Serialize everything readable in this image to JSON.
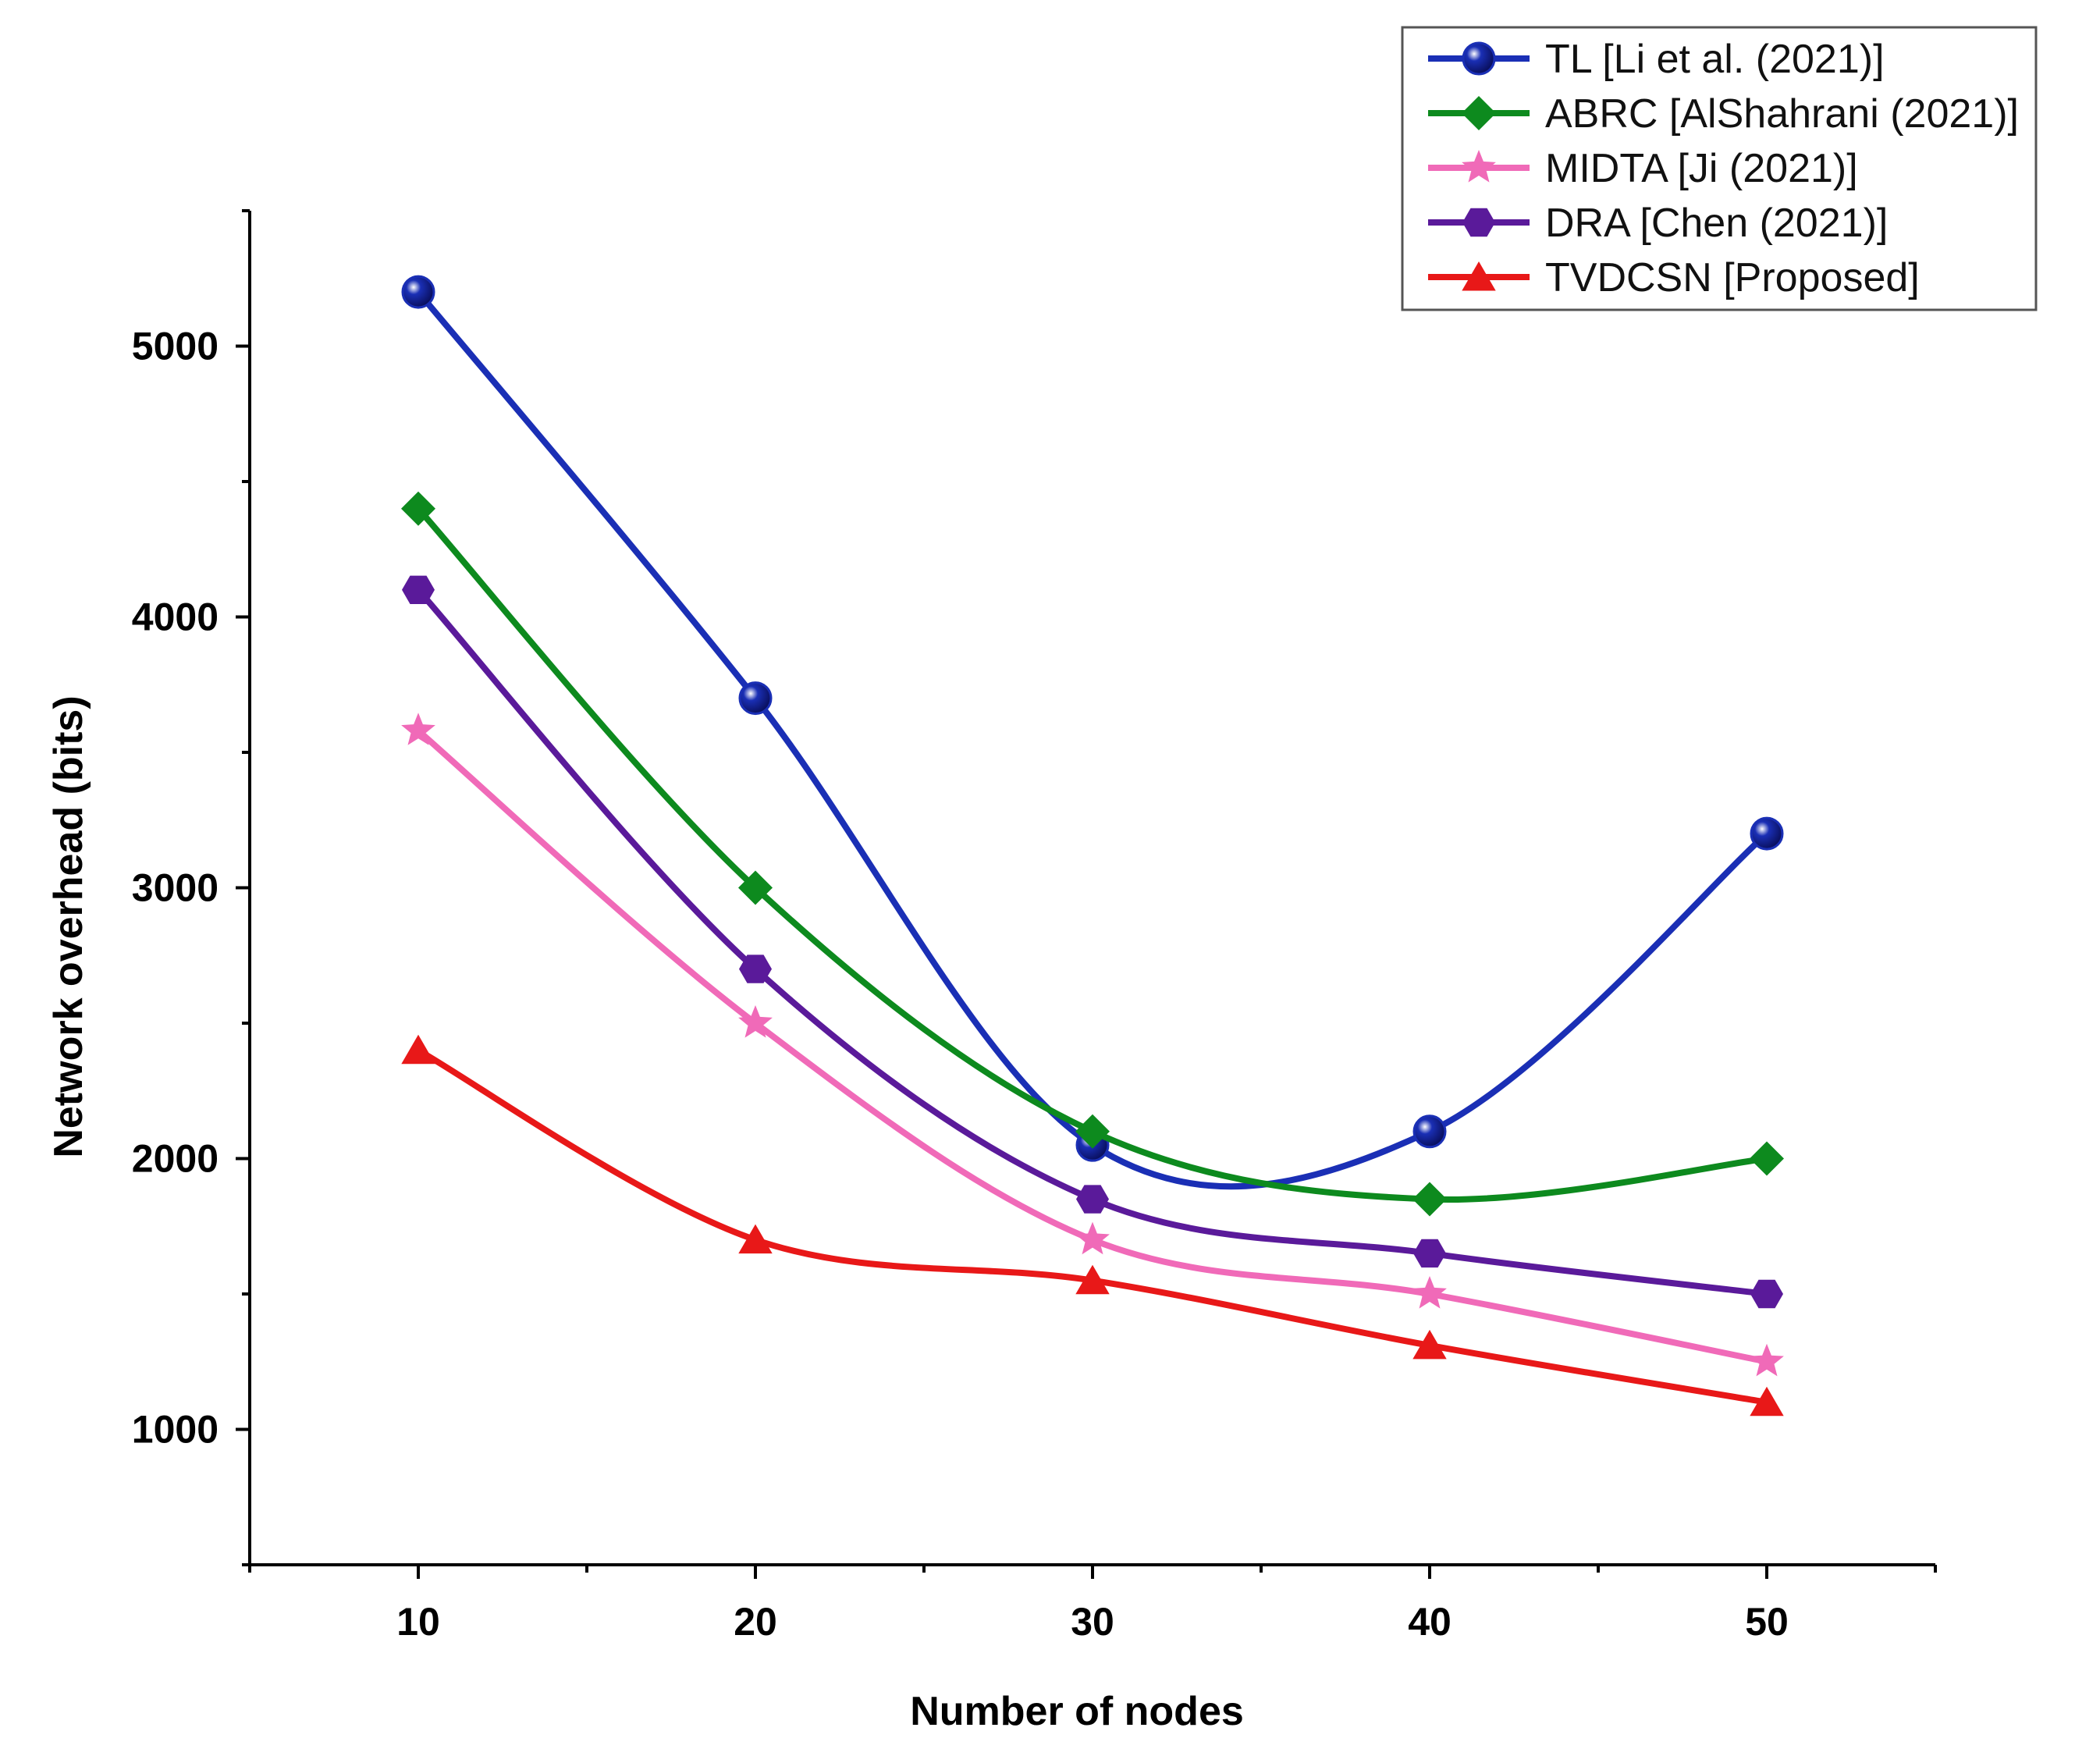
{
  "chart_data": {
    "type": "line",
    "xlabel": "Number of nodes",
    "ylabel": "Network overhead (bits)",
    "x": [
      10,
      20,
      30,
      40,
      50
    ],
    "xlim": [
      5,
      55
    ],
    "ylim": [
      500,
      5500
    ],
    "x_ticks": [
      10,
      20,
      30,
      40,
      50
    ],
    "y_ticks": [
      1000,
      2000,
      3000,
      4000,
      5000
    ],
    "x_tick_labels": [
      "10",
      "20",
      "30",
      "40",
      "50"
    ],
    "y_tick_labels": [
      "1000",
      "2000",
      "3000",
      "4000",
      "5000"
    ],
    "grid": false,
    "legend_position": "top-right",
    "series": [
      {
        "name": "TL [Li et al. (2021)]",
        "values": [
          5200,
          3700,
          2050,
          2100,
          3200
        ],
        "color": "#1a2fb5",
        "marker": "circle"
      },
      {
        "name": "ABRC [AlShahrani (2021)]",
        "values": [
          4400,
          3000,
          2100,
          1850,
          2000
        ],
        "color": "#0d8a1e",
        "marker": "diamond"
      },
      {
        "name": "MIDTA [Ji (2021)]",
        "values": [
          3580,
          2500,
          1700,
          1500,
          1250
        ],
        "color": "#f06ab8",
        "marker": "star"
      },
      {
        "name": "DRA [Chen (2021)]",
        "values": [
          4100,
          2700,
          1850,
          1650,
          1500
        ],
        "color": "#5a1a9a",
        "marker": "hexagon"
      },
      {
        "name": "TVDCSN [Proposed]",
        "values": [
          2400,
          1700,
          1550,
          1310,
          1100
        ],
        "color": "#e81818",
        "marker": "triangle"
      }
    ]
  }
}
